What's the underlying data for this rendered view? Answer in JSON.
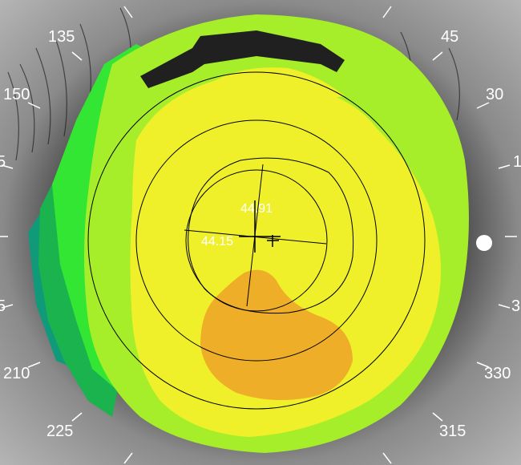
{
  "axis_labels": {
    "a45": "45",
    "a30": "30",
    "a135": "135",
    "a150": "150",
    "a210": "210",
    "a225": "225",
    "a315": "315",
    "a330": "330",
    "a165_partial": "5",
    "a195_partial": "5",
    "a15_partial": "1",
    "a345_partial": "3"
  },
  "keratometry": {
    "steep_k": "44.91",
    "flat_k": "44.15"
  },
  "colors": {
    "orange": "#eeae28",
    "yellow": "#f0f02a",
    "yellow_green": "#c8ee2a",
    "light_green": "#a6ee2a",
    "green": "#33e633",
    "dark_green": "#1ab34d",
    "teal": "#109a7a",
    "eyelid_shadow": "#202020"
  },
  "icons": {
    "specular_reflection": "light-reflex-icon"
  }
}
